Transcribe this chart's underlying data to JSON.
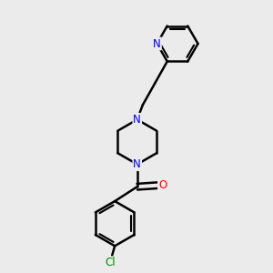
{
  "bg_color": "#ebebeb",
  "bond_color": "#000000",
  "bond_width": 1.8,
  "atom_N_color": "#0000ee",
  "atom_O_color": "#ff0000",
  "atom_Cl_color": "#008800",
  "figsize": [
    3.0,
    3.0
  ],
  "dpi": 100,
  "xlim": [
    0,
    10
  ],
  "ylim": [
    0,
    10
  ]
}
